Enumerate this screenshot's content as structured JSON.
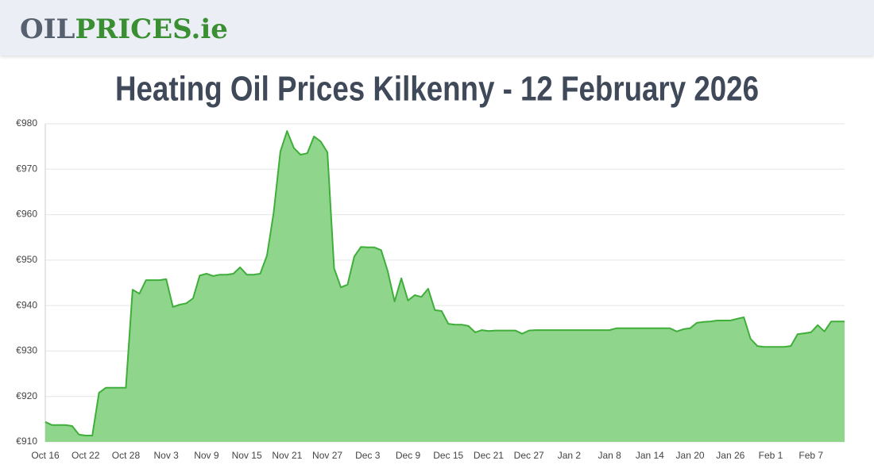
{
  "header": {
    "logo_dark": "OIL",
    "logo_green": "PRICES.ie"
  },
  "chart_data": {
    "type": "area",
    "title": "Heating Oil Prices Kilkenny - 12 February 2026",
    "categories": [
      "Oct 16",
      null,
      null,
      null,
      null,
      null,
      "Oct 22",
      null,
      null,
      null,
      null,
      null,
      "Oct 28",
      null,
      null,
      null,
      null,
      null,
      "Nov 3",
      null,
      null,
      null,
      null,
      null,
      "Nov 9",
      null,
      null,
      null,
      null,
      null,
      "Nov 15",
      null,
      null,
      null,
      null,
      null,
      "Nov 21",
      null,
      null,
      null,
      null,
      null,
      "Nov 27",
      null,
      null,
      null,
      null,
      null,
      "Dec 3",
      null,
      null,
      null,
      null,
      null,
      "Dec 9",
      null,
      null,
      null,
      null,
      null,
      "Dec 15",
      null,
      null,
      null,
      null,
      null,
      "Dec 21",
      null,
      null,
      null,
      null,
      null,
      "Dec 27",
      null,
      null,
      null,
      null,
      null,
      "Jan 2",
      null,
      null,
      null,
      null,
      null,
      "Jan 8",
      null,
      null,
      null,
      null,
      null,
      "Jan 14",
      null,
      null,
      null,
      null,
      null,
      "Jan 20",
      null,
      null,
      null,
      null,
      null,
      "Jan 26",
      null,
      null,
      null,
      null,
      null,
      "Feb 1",
      null,
      null,
      null,
      null,
      null,
      "Feb 7",
      null,
      null,
      null,
      null,
      null
    ],
    "values": [
      914.4,
      913.7,
      913.7,
      913.7,
      913.5,
      911.6,
      911.4,
      911.4,
      920.8,
      921.9,
      921.9,
      921.9,
      921.9,
      943.5,
      942.6,
      945.6,
      945.6,
      945.6,
      945.8,
      939.7,
      940.2,
      940.5,
      941.6,
      946.6,
      947,
      946.5,
      946.8,
      946.8,
      947,
      948.4,
      946.8,
      946.8,
      947,
      951,
      960.4,
      973.9,
      978.4,
      974.7,
      973.2,
      973.5,
      977.2,
      976.1,
      973.7,
      948.2,
      944,
      944.6,
      950.8,
      952.9,
      952.8,
      952.8,
      952.2,
      947.5,
      940.9,
      946,
      941.1,
      942.3,
      941.9,
      943.7,
      939,
      938.8,
      936,
      935.8,
      935.8,
      935.5,
      934.1,
      934.6,
      934.4,
      934.5,
      934.5,
      934.5,
      934.5,
      933.8,
      934.5,
      934.6,
      934.6,
      934.6,
      934.6,
      934.6,
      934.6,
      934.6,
      934.6,
      934.6,
      934.6,
      934.6,
      934.6,
      935,
      935,
      935,
      935,
      935,
      935,
      935,
      935,
      935,
      934.3,
      934.8,
      935,
      936.2,
      936.4,
      936.5,
      936.7,
      936.7,
      936.7,
      937.1,
      937.4,
      932.7,
      931.1,
      930.9,
      930.9,
      930.9,
      930.9,
      931.1,
      933.7,
      933.9,
      934.1,
      935.7,
      934.3,
      936.5,
      936.5,
      936.5
    ],
    "color": "#3fae3a",
    "fill_color": "#90d58c",
    "ylim": [
      910,
      980
    ],
    "yticks": [
      {
        "value": 910,
        "label": "€910"
      },
      {
        "value": 920,
        "label": "€920"
      },
      {
        "value": 930,
        "label": "€930"
      },
      {
        "value": 940,
        "label": "€940"
      },
      {
        "value": 950,
        "label": "€950"
      },
      {
        "value": 960,
        "label": "€960"
      },
      {
        "value": 970,
        "label": "€970"
      },
      {
        "value": 980,
        "label": "€980"
      }
    ],
    "grid": true
  }
}
